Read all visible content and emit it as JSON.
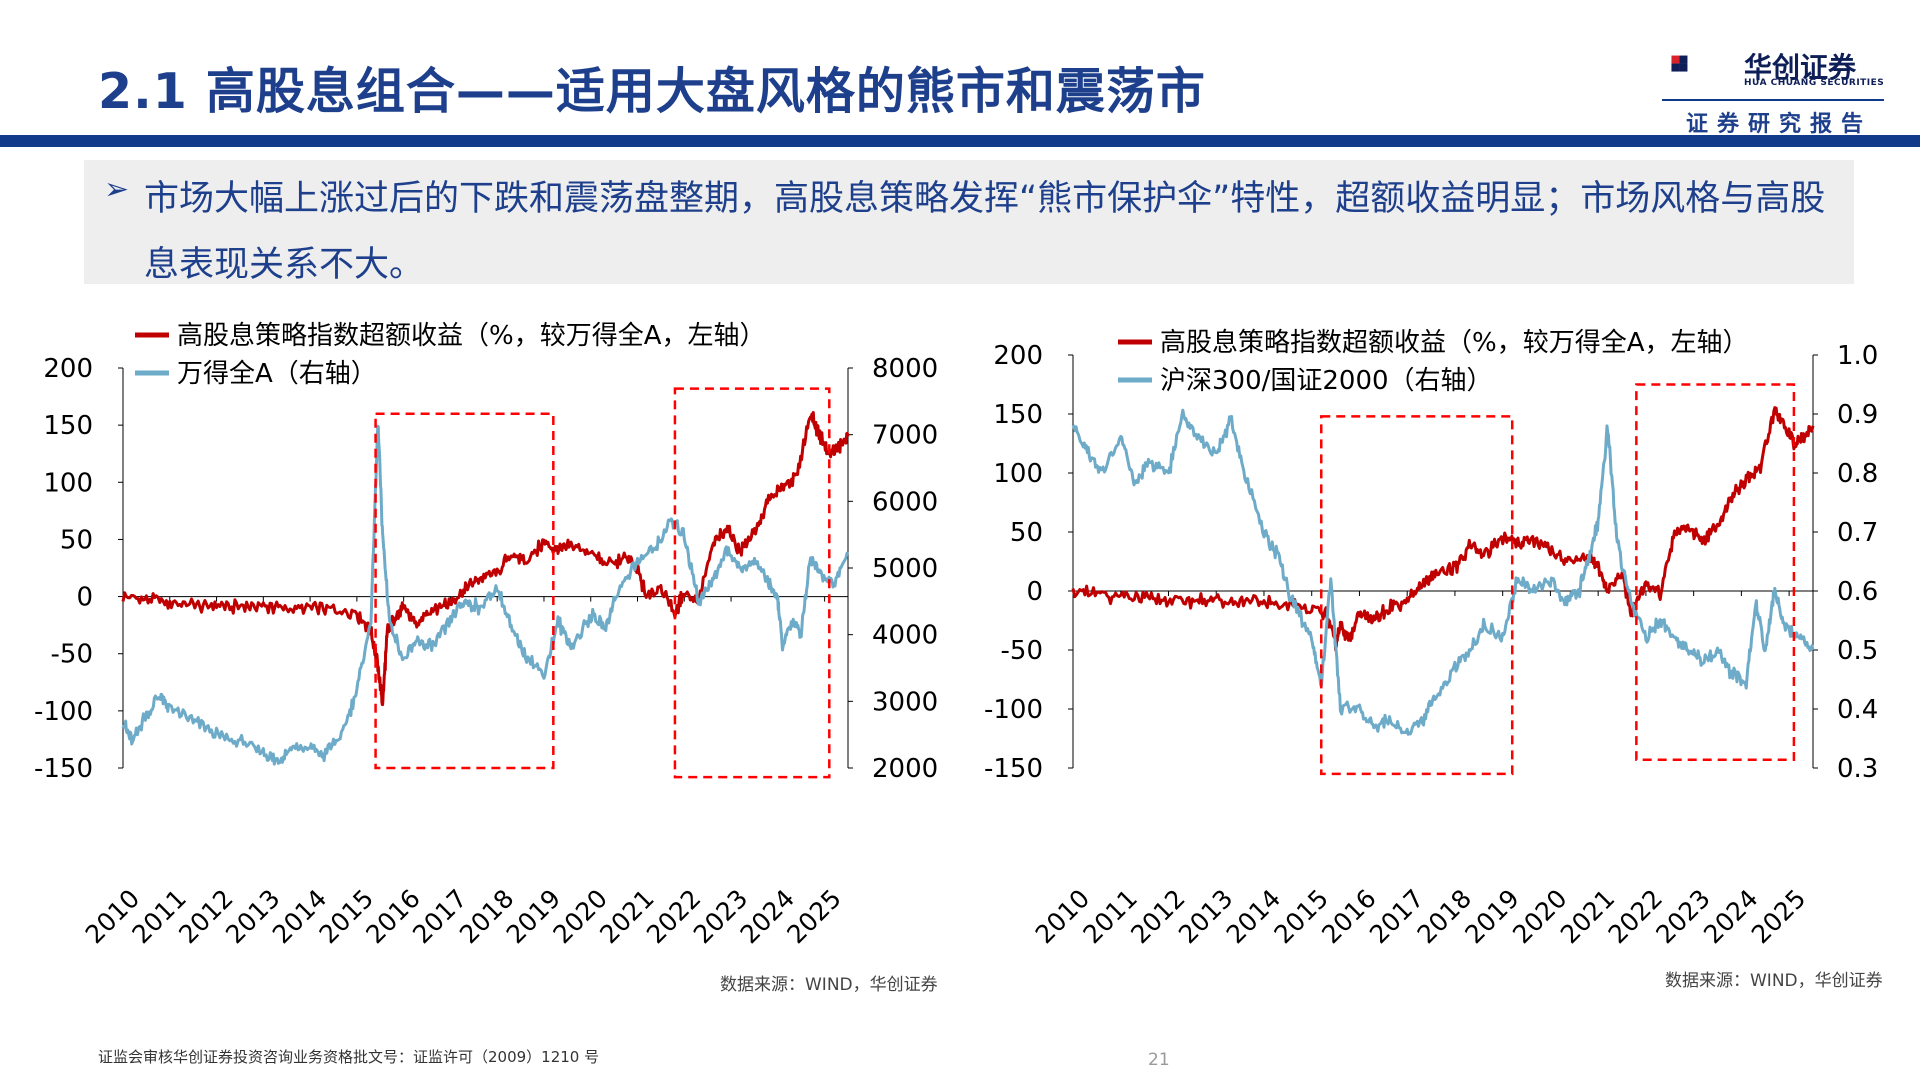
{
  "header": {
    "title": "2.1 高股息组合——适用大盘风格的熊市和震荡市",
    "logo_name": "华创证券",
    "logo_english": "HUA CHUANG SECURITIES",
    "tagline": "证券研究报告"
  },
  "summary": {
    "bullet": "➢",
    "text": "市场大幅上涨过后的下跌和震荡盘整期，高股息策略发挥“熊市保护伞”特性，超额收益明显；市场风格与高股息表现关系不大。"
  },
  "colors": {
    "red": "#c00000",
    "blue": "#6eabc8",
    "title_blue": "#1d3f8c",
    "highlight": "#ff0000"
  },
  "chart_data": [
    {
      "type": "line",
      "x": [
        "2010",
        "2011",
        "2012",
        "2013",
        "2014",
        "2015",
        "2016",
        "2017",
        "2018",
        "2019",
        "2020",
        "2021",
        "2022",
        "2023",
        "2024",
        "2025"
      ],
      "x_range": [
        2010.0,
        2025.5
      ],
      "series": [
        {
          "name": "高股息策略指数超额收益（%，较万得全A，左轴）",
          "axis": "left",
          "color": "#c00000",
          "points": [
            [
              2010.0,
              0
            ],
            [
              2010.5,
              -3
            ],
            [
              2011.0,
              -5
            ],
            [
              2011.5,
              -8
            ],
            [
              2012.0,
              -8
            ],
            [
              2012.5,
              -9
            ],
            [
              2013.0,
              -8
            ],
            [
              2013.5,
              -10
            ],
            [
              2014.0,
              -10
            ],
            [
              2014.5,
              -12
            ],
            [
              2015.0,
              -15
            ],
            [
              2015.3,
              -30
            ],
            [
              2015.45,
              -60
            ],
            [
              2015.55,
              -95
            ],
            [
              2015.65,
              -30
            ],
            [
              2015.8,
              -20
            ],
            [
              2016.0,
              -10
            ],
            [
              2016.3,
              -25
            ],
            [
              2016.6,
              -10
            ],
            [
              2017.0,
              -5
            ],
            [
              2017.3,
              5
            ],
            [
              2017.6,
              15
            ],
            [
              2018.0,
              20
            ],
            [
              2018.3,
              38
            ],
            [
              2018.6,
              30
            ],
            [
              2019.0,
              48
            ],
            [
              2019.3,
              40
            ],
            [
              2019.6,
              45
            ],
            [
              2020.0,
              38
            ],
            [
              2020.4,
              28
            ],
            [
              2020.8,
              35
            ],
            [
              2021.0,
              22
            ],
            [
              2021.2,
              0
            ],
            [
              2021.5,
              10
            ],
            [
              2021.8,
              -15
            ],
            [
              2022.0,
              5
            ],
            [
              2022.3,
              -5
            ],
            [
              2022.6,
              45
            ],
            [
              2022.9,
              60
            ],
            [
              2023.2,
              40
            ],
            [
              2023.5,
              55
            ],
            [
              2023.8,
              85
            ],
            [
              2024.1,
              95
            ],
            [
              2024.4,
              105
            ],
            [
              2024.7,
              160
            ],
            [
              2024.9,
              140
            ],
            [
              2025.1,
              125
            ],
            [
              2025.3,
              130
            ],
            [
              2025.5,
              140
            ]
          ]
        },
        {
          "name": "万得全A（右轴）",
          "axis": "right",
          "color": "#6eabc8",
          "points": [
            [
              2010.0,
              2700
            ],
            [
              2010.2,
              2400
            ],
            [
              2010.5,
              2800
            ],
            [
              2010.8,
              3100
            ],
            [
              2011.0,
              2900
            ],
            [
              2011.5,
              2700
            ],
            [
              2012.0,
              2500
            ],
            [
              2012.5,
              2400
            ],
            [
              2013.0,
              2250
            ],
            [
              2013.3,
              2100
            ],
            [
              2013.6,
              2300
            ],
            [
              2014.0,
              2300
            ],
            [
              2014.3,
              2200
            ],
            [
              2014.7,
              2500
            ],
            [
              2015.0,
              3200
            ],
            [
              2015.3,
              4200
            ],
            [
              2015.45,
              7200
            ],
            [
              2015.55,
              5500
            ],
            [
              2015.7,
              4200
            ],
            [
              2016.0,
              3600
            ],
            [
              2016.3,
              3900
            ],
            [
              2016.6,
              3800
            ],
            [
              2017.0,
              4200
            ],
            [
              2017.3,
              4500
            ],
            [
              2017.6,
              4400
            ],
            [
              2018.0,
              4700
            ],
            [
              2018.3,
              4100
            ],
            [
              2018.6,
              3700
            ],
            [
              2019.0,
              3400
            ],
            [
              2019.3,
              4200
            ],
            [
              2019.6,
              3800
            ],
            [
              2020.0,
              4300
            ],
            [
              2020.3,
              4100
            ],
            [
              2020.6,
              4700
            ],
            [
              2021.0,
              5100
            ],
            [
              2021.4,
              5300
            ],
            [
              2021.7,
              5700
            ],
            [
              2022.0,
              5500
            ],
            [
              2022.3,
              4500
            ],
            [
              2022.6,
              4800
            ],
            [
              2022.9,
              5300
            ],
            [
              2023.2,
              5000
            ],
            [
              2023.5,
              5100
            ],
            [
              2023.8,
              4800
            ],
            [
              2024.0,
              4500
            ],
            [
              2024.1,
              3800
            ],
            [
              2024.3,
              4200
            ],
            [
              2024.5,
              4000
            ],
            [
              2024.7,
              5200
            ],
            [
              2024.9,
              4900
            ],
            [
              2025.2,
              4800
            ],
            [
              2025.5,
              5200
            ]
          ]
        }
      ],
      "y_left": {
        "range": [
          -150,
          200
        ],
        "ticks": [
          "200",
          "150",
          "100",
          "50",
          "0",
          "-50",
          "-100",
          "-150"
        ]
      },
      "y_right": {
        "range": [
          2000,
          8000
        ],
        "ticks": [
          "8000",
          "7000",
          "6000",
          "5000",
          "4000",
          "3000",
          "2000"
        ]
      },
      "legend_position": "top-left",
      "highlight_boxes": [
        [
          2015.4,
          2019.2,
          -150,
          160
        ],
        [
          2021.8,
          2025.1,
          -158,
          182
        ]
      ]
    },
    {
      "type": "line",
      "x": [
        "2010",
        "2011",
        "2012",
        "2013",
        "2014",
        "2015",
        "2016",
        "2017",
        "2018",
        "2019",
        "2020",
        "2021",
        "2022",
        "2023",
        "2024",
        "2025"
      ],
      "x_range": [
        2010.0,
        2025.5
      ],
      "series": [
        {
          "name": "高股息策略指数超额收益（%，较万得全A，左轴）",
          "axis": "left",
          "color": "#c00000",
          "points": [
            [
              2010.0,
              0
            ],
            [
              2010.5,
              -3
            ],
            [
              2011.0,
              -5
            ],
            [
              2011.5,
              -7
            ],
            [
              2012.0,
              -8
            ],
            [
              2012.5,
              -8
            ],
            [
              2013.0,
              -8
            ],
            [
              2013.5,
              -10
            ],
            [
              2014.0,
              -10
            ],
            [
              2014.5,
              -12
            ],
            [
              2015.0,
              -14
            ],
            [
              2015.3,
              -20
            ],
            [
              2015.5,
              -45
            ],
            [
              2015.6,
              -30
            ],
            [
              2015.8,
              -40
            ],
            [
              2016.0,
              -20
            ],
            [
              2016.3,
              -25
            ],
            [
              2016.6,
              -15
            ],
            [
              2017.0,
              -8
            ],
            [
              2017.3,
              5
            ],
            [
              2017.6,
              15
            ],
            [
              2018.0,
              18
            ],
            [
              2018.3,
              38
            ],
            [
              2018.6,
              30
            ],
            [
              2019.0,
              45
            ],
            [
              2019.3,
              40
            ],
            [
              2019.6,
              45
            ],
            [
              2020.0,
              35
            ],
            [
              2020.4,
              25
            ],
            [
              2020.8,
              30
            ],
            [
              2021.0,
              22
            ],
            [
              2021.2,
              0
            ],
            [
              2021.5,
              15
            ],
            [
              2021.7,
              -20
            ],
            [
              2022.0,
              8
            ],
            [
              2022.3,
              -2
            ],
            [
              2022.6,
              50
            ],
            [
              2022.9,
              55
            ],
            [
              2023.2,
              40
            ],
            [
              2023.5,
              55
            ],
            [
              2023.8,
              80
            ],
            [
              2024.1,
              95
            ],
            [
              2024.4,
              105
            ],
            [
              2024.7,
              155
            ],
            [
              2024.9,
              140
            ],
            [
              2025.1,
              125
            ],
            [
              2025.3,
              130
            ],
            [
              2025.5,
              140
            ]
          ]
        },
        {
          "name": "沪深300/国证2000（右轴）",
          "axis": "right",
          "color": "#6eabc8",
          "points": [
            [
              2010.0,
              0.88
            ],
            [
              2010.3,
              0.84
            ],
            [
              2010.6,
              0.8
            ],
            [
              2011.0,
              0.86
            ],
            [
              2011.3,
              0.78
            ],
            [
              2011.6,
              0.82
            ],
            [
              2012.0,
              0.8
            ],
            [
              2012.3,
              0.9
            ],
            [
              2012.6,
              0.86
            ],
            [
              2013.0,
              0.83
            ],
            [
              2013.3,
              0.89
            ],
            [
              2013.6,
              0.8
            ],
            [
              2014.0,
              0.7
            ],
            [
              2014.3,
              0.66
            ],
            [
              2014.6,
              0.58
            ],
            [
              2015.0,
              0.52
            ],
            [
              2015.2,
              0.44
            ],
            [
              2015.4,
              0.62
            ],
            [
              2015.6,
              0.4
            ],
            [
              2016.0,
              0.4
            ],
            [
              2016.3,
              0.37
            ],
            [
              2016.6,
              0.38
            ],
            [
              2017.0,
              0.36
            ],
            [
              2017.3,
              0.38
            ],
            [
              2017.6,
              0.42
            ],
            [
              2018.0,
              0.47
            ],
            [
              2018.3,
              0.5
            ],
            [
              2018.6,
              0.54
            ],
            [
              2019.0,
              0.52
            ],
            [
              2019.3,
              0.62
            ],
            [
              2019.6,
              0.6
            ],
            [
              2020.0,
              0.62
            ],
            [
              2020.3,
              0.58
            ],
            [
              2020.6,
              0.6
            ],
            [
              2020.8,
              0.65
            ],
            [
              2021.0,
              0.72
            ],
            [
              2021.2,
              0.88
            ],
            [
              2021.4,
              0.68
            ],
            [
              2021.7,
              0.58
            ],
            [
              2022.0,
              0.52
            ],
            [
              2022.3,
              0.55
            ],
            [
              2022.6,
              0.52
            ],
            [
              2022.9,
              0.5
            ],
            [
              2023.2,
              0.48
            ],
            [
              2023.5,
              0.5
            ],
            [
              2023.8,
              0.46
            ],
            [
              2024.1,
              0.44
            ],
            [
              2024.3,
              0.58
            ],
            [
              2024.5,
              0.5
            ],
            [
              2024.7,
              0.6
            ],
            [
              2024.9,
              0.54
            ],
            [
              2025.2,
              0.52
            ],
            [
              2025.5,
              0.5
            ]
          ]
        }
      ],
      "y_left": {
        "range": [
          -150,
          200
        ],
        "ticks": [
          "200",
          "150",
          "100",
          "50",
          "0",
          "-50",
          "-100",
          "-150"
        ]
      },
      "y_right": {
        "range": [
          0.3,
          1.0
        ],
        "ticks": [
          "1.0",
          "0.9",
          "0.8",
          "0.7",
          "0.6",
          "0.5",
          "0.4",
          "0.3"
        ]
      },
      "legend_position": "top-left",
      "highlight_boxes": [
        [
          2015.2,
          2019.2,
          -155,
          148
        ],
        [
          2021.8,
          2025.1,
          -143,
          175
        ]
      ]
    }
  ],
  "sources": [
    "数据来源：WIND，华创证券",
    "数据来源：WIND，华创证券"
  ],
  "footer": {
    "license": "证监会审核华创证券投资咨询业务资格批文号：证监许可（2009）1210 号",
    "page": "21"
  }
}
